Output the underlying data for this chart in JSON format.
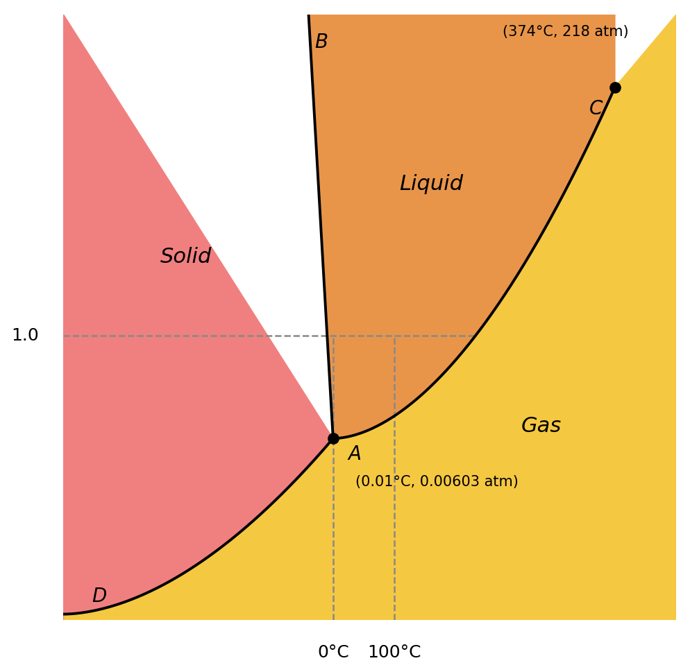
{
  "background_color": "#ffffff",
  "solid_color": "#F08080",
  "liquid_color": "#E8954A",
  "gas_color": "#F5C842",
  "line_color": "#000000",
  "dashed_color": "#888888",
  "annotation_triple": "(0.01°C, 0.00603 atm)",
  "annotation_critical": "(374°C, 218 atm)",
  "label_1atm": "1.0",
  "label_0C": "0°C",
  "label_100C": "100°C",
  "point_A_label": "A",
  "point_B_label": "B",
  "point_C_label": "C",
  "point_D_label": "D",
  "solid_text": "Solid",
  "liquid_text": "Liquid",
  "gas_text": "Gas"
}
